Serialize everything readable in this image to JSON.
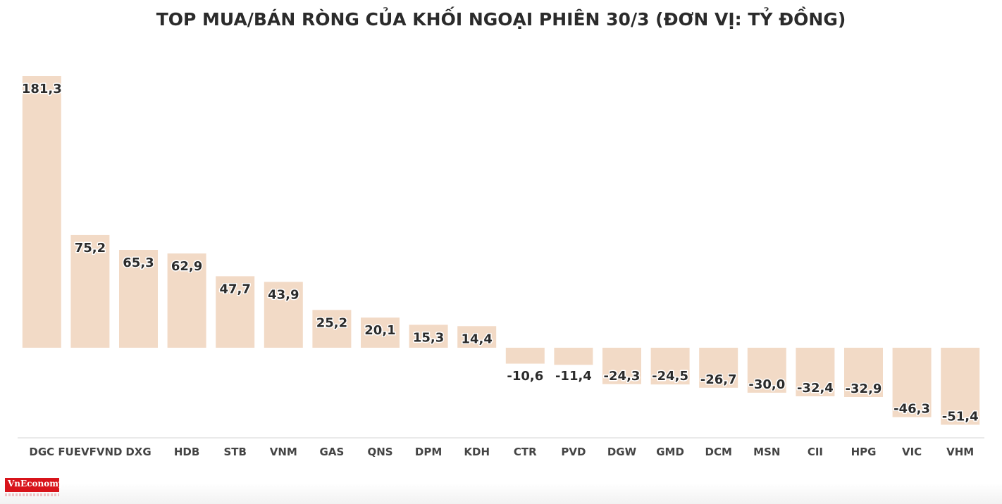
{
  "title": "TOP MUA/BÁN RÒNG CỦA KHỐI NGOẠI PHIÊN 30/3 (ĐƠN VỊ: TỶ ĐỒNG)",
  "logo_text": "VnEconomy",
  "colors": {
    "bar": "#f2dac6",
    "label": "#2b2b2b",
    "axis": "#d6d6d6",
    "tick": "#444444",
    "title": "#2b2b2b"
  },
  "chart_data": {
    "type": "bar",
    "title": "TOP MUA/BÁN RÒNG CỦA KHỐI NGOẠI PHIÊN 30/3 (ĐƠN VỊ: TỶ ĐỒNG)",
    "xlabel": "",
    "ylabel": "",
    "grid": false,
    "legend": "none",
    "ylim": [
      -51.4,
      181.3
    ],
    "categories": [
      "DGC",
      "FUEVFVND",
      "DXG",
      "HDB",
      "STB",
      "VNM",
      "GAS",
      "QNS",
      "DPM",
      "KDH",
      "CTR",
      "PVD",
      "DGW",
      "GMD",
      "DCM",
      "MSN",
      "CII",
      "HPG",
      "VIC",
      "VHM"
    ],
    "values": [
      181.3,
      75.2,
      65.3,
      62.9,
      47.7,
      43.9,
      25.2,
      20.1,
      15.3,
      14.4,
      -10.6,
      -11.4,
      -24.3,
      -24.5,
      -26.7,
      -30.0,
      -32.4,
      -32.9,
      -46.3,
      -51.4
    ],
    "value_labels": [
      "181,3",
      "75,2",
      "65,3",
      "62,9",
      "47,7",
      "43,9",
      "25,2",
      "20,1",
      "15,3",
      "14,4",
      "-10,6",
      "-11,4",
      "-24,3",
      "-24,5",
      "-26,7",
      "-30,0",
      "-32,4",
      "-32,9",
      "-46,3",
      "-51,4"
    ]
  }
}
